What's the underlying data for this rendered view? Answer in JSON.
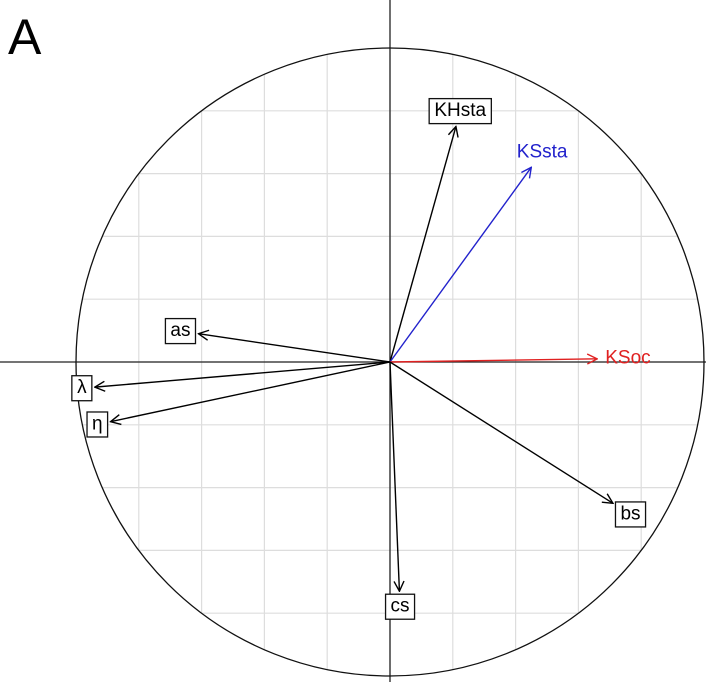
{
  "chart_data": {
    "type": "vector",
    "title": "A",
    "xlim": [
      -1,
      1
    ],
    "ylim": [
      -1,
      1
    ],
    "xticks": [
      -1,
      -0.8,
      -0.6,
      -0.4,
      -0.2,
      0,
      0.2,
      0.4,
      0.6,
      0.8,
      1
    ],
    "yticks": [
      -1,
      -0.8,
      -0.6,
      -0.4,
      -0.2,
      0,
      0.2,
      0.4,
      0.6,
      0.8,
      1
    ],
    "grid": true,
    "series": [
      {
        "name": "KHsta",
        "color": "#000000",
        "boxed": true,
        "x": 0.21,
        "y": 0.75
      },
      {
        "name": "KSsta",
        "color": "#2222cc",
        "boxed": false,
        "x": 0.45,
        "y": 0.62
      },
      {
        "name": "KSoc",
        "color": "#e02020",
        "boxed": false,
        "x": 0.66,
        "y": 0.01
      },
      {
        "name": "as",
        "color": "#000000",
        "boxed": true,
        "x": -0.61,
        "y": 0.09
      },
      {
        "name": "λ",
        "color": "#000000",
        "boxed": true,
        "x": -0.94,
        "y": -0.08
      },
      {
        "name": "η",
        "color": "#000000",
        "boxed": true,
        "x": -0.89,
        "y": -0.19
      },
      {
        "name": "bs",
        "color": "#000000",
        "boxed": true,
        "x": 0.71,
        "y": -0.45
      },
      {
        "name": "cs",
        "color": "#000000",
        "boxed": true,
        "x": 0.03,
        "y": -0.73
      }
    ]
  }
}
